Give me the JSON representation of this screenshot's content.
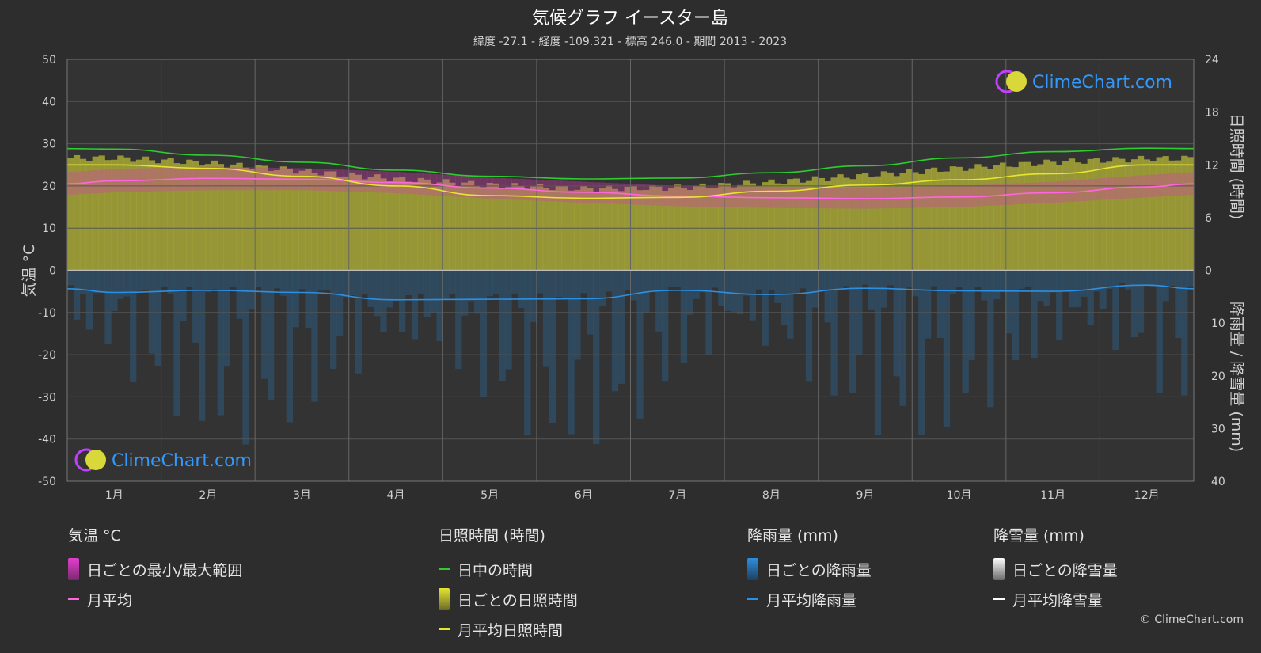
{
  "colors": {
    "background": "#2d2d2d",
    "grid": "#555555",
    "axis_text": "#d0d0d0",
    "daylight": "#2ecc2e",
    "sunshine_fill": "#a8a838",
    "sunshine_line": "#e6e632",
    "temp_fill": "#d63fb0",
    "temp_line": "#ff66e0",
    "rain_fill": "#2c5a7c",
    "rain_line": "#2d8fe0",
    "snow_line": "#ffffff",
    "brand_blue": "#3399ff"
  },
  "branding": {
    "logo_text": "ClimeChart.com",
    "copyright": "© ClimeChart.com"
  },
  "chart_data": {
    "type": "line",
    "title": "気候グラフ イースター島",
    "subtitle": "緯度 -27.1 - 経度 -109.321 - 標高 246.0 - 期間 2013 - 2023",
    "categories": [
      "1月",
      "2月",
      "3月",
      "4月",
      "5月",
      "6月",
      "7月",
      "8月",
      "9月",
      "10月",
      "11月",
      "12月"
    ],
    "y_left": {
      "label": "気温 °C",
      "min": -50,
      "max": 50,
      "ticks": [
        50,
        40,
        30,
        20,
        10,
        0,
        -10,
        -20,
        -30,
        -40,
        -50
      ]
    },
    "y_right_top": {
      "label": "日照時間 (時間)",
      "min": 0,
      "max": 24,
      "ticks": [
        24,
        18,
        12,
        6,
        0
      ]
    },
    "y_right_bottom": {
      "label": "降雨量 / 降雪量 (mm)",
      "min": 0,
      "max": 40,
      "ticks": [
        0,
        10,
        20,
        30,
        40
      ]
    },
    "grid": true,
    "series": [
      {
        "name": "日中の時間",
        "axis": "sunshine_hours",
        "values": [
          13.8,
          13.1,
          12.3,
          11.4,
          10.7,
          10.4,
          10.5,
          11.1,
          11.9,
          12.8,
          13.5,
          13.9
        ]
      },
      {
        "name": "月平均日照時間",
        "axis": "sunshine_hours",
        "values": [
          12.0,
          11.6,
          10.7,
          9.6,
          8.5,
          8.2,
          8.3,
          9.0,
          9.7,
          10.3,
          11.0,
          12.0
        ]
      },
      {
        "name": "日ごとの日照時間",
        "axis": "sunshine_hours",
        "values": [
          12.8,
          12.2,
          11.3,
          10.4,
          9.7,
          9.3,
          9.4,
          10.0,
          10.8,
          11.6,
          12.3,
          12.7
        ]
      },
      {
        "name": "月平均",
        "axis": "temperature_c",
        "values": [
          21.2,
          21.8,
          21.6,
          20.8,
          19.5,
          18.5,
          17.6,
          17.2,
          17.0,
          17.4,
          18.4,
          19.8
        ]
      },
      {
        "name": "日ごとの最小/最大範囲",
        "axis": "temperature_c",
        "low": [
          18.5,
          19.0,
          19.0,
          18.3,
          17.0,
          16.0,
          15.2,
          14.8,
          14.6,
          15.0,
          16.0,
          17.3
        ],
        "high": [
          24.0,
          24.6,
          24.2,
          23.4,
          22.0,
          21.0,
          20.0,
          19.8,
          19.6,
          20.0,
          21.0,
          22.6
        ]
      },
      {
        "name": "月平均降雨量",
        "axis": "precipitation_mm",
        "values": [
          4.2,
          3.8,
          4.2,
          5.6,
          5.5,
          5.4,
          3.8,
          4.6,
          3.4,
          3.9,
          4.0,
          2.8
        ]
      },
      {
        "name": "月平均降雪量",
        "axis": "precipitation_mm",
        "values": [
          0,
          0,
          0,
          0,
          0,
          0,
          0,
          0,
          0,
          0,
          0,
          0
        ]
      }
    ],
    "legend": {
      "groups": [
        {
          "title": "気温 °C",
          "items": [
            {
              "label": "日ごとの最小/最大範囲",
              "kind": "box",
              "color": "#e23fd0"
            },
            {
              "label": "月平均",
              "kind": "line",
              "color": "#ff66e0"
            }
          ]
        },
        {
          "title": "日照時間 (時間)",
          "items": [
            {
              "label": "日中の時間",
              "kind": "line",
              "color": "#2ecc2e"
            },
            {
              "label": "日ごとの日照時間",
              "kind": "box",
              "color": "#c8c83a"
            },
            {
              "label": "月平均日照時間",
              "kind": "line",
              "color": "#e6e632"
            }
          ]
        },
        {
          "title": "降雨量 (mm)",
          "items": [
            {
              "label": "日ごとの降雨量",
              "kind": "box",
              "color": "#2d8fe0"
            },
            {
              "label": "月平均降雨量",
              "kind": "line",
              "color": "#2d8fe0"
            }
          ]
        },
        {
          "title": "降雪量 (mm)",
          "items": [
            {
              "label": "日ごとの降雪量",
              "kind": "box",
              "color": "#d8d8d8"
            },
            {
              "label": "月平均降雪量",
              "kind": "line",
              "color": "#ffffff"
            }
          ]
        }
      ]
    }
  }
}
